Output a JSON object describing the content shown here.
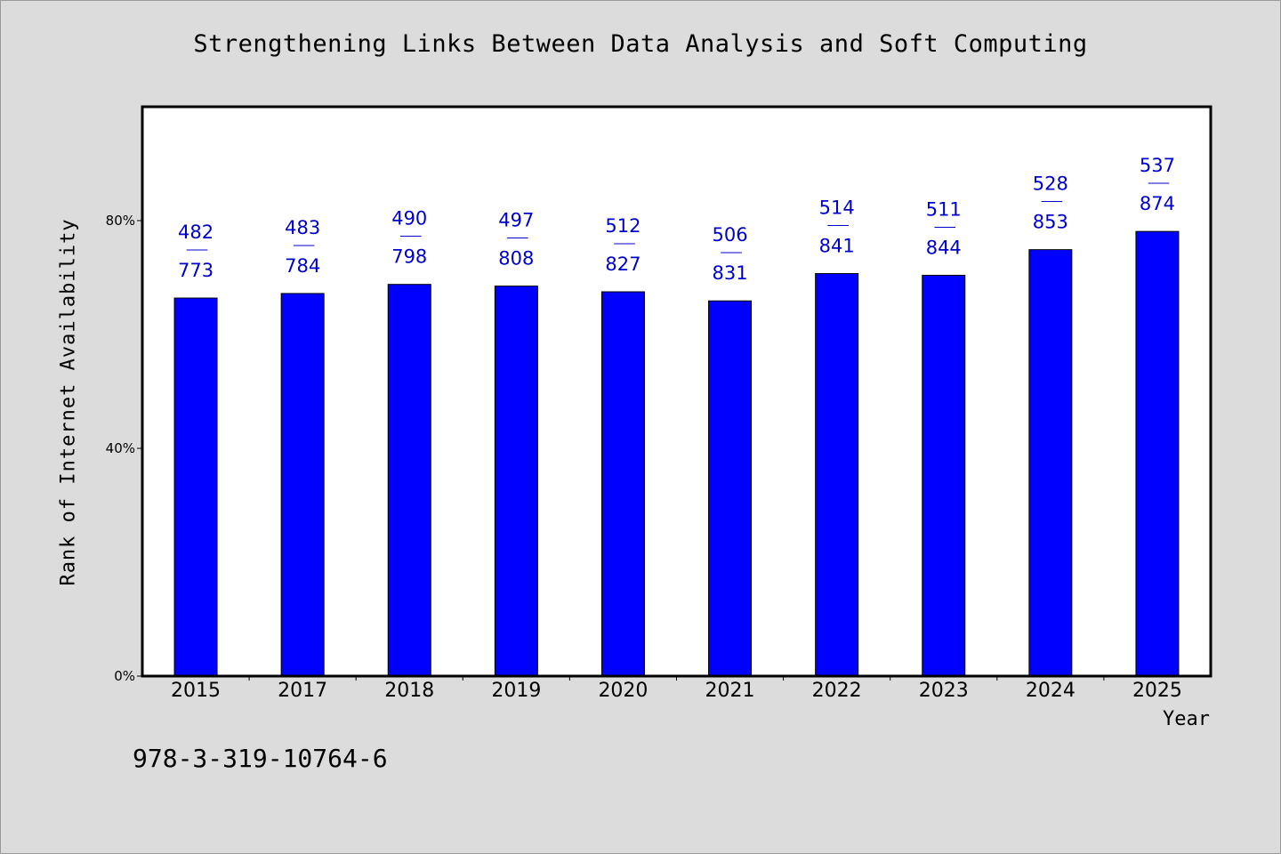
{
  "chart_data": {
    "type": "bar",
    "title": "Strengthening Links Between Data Analysis and Soft Computing",
    "xlabel": "Year",
    "ylabel": "Rank of Internet Availability",
    "categories": [
      "2015",
      "2017",
      "2018",
      "2019",
      "2020",
      "2021",
      "2022",
      "2023",
      "2024",
      "2025"
    ],
    "values": [
      66.4,
      67.2,
      68.8,
      68.5,
      67.5,
      65.9,
      70.7,
      70.4,
      74.9,
      78.1
    ],
    "labels_top": [
      "482",
      "483",
      "490",
      "497",
      "512",
      "506",
      "514",
      "511",
      "528",
      "537"
    ],
    "labels_bottom": [
      "773",
      "784",
      "798",
      "808",
      "827",
      "831",
      "841",
      "844",
      "853",
      "874"
    ],
    "label_separator": "——",
    "yticks": [
      0,
      40,
      80
    ],
    "ytick_labels": [
      "0%",
      "40%",
      "80%"
    ],
    "ylim": [
      0,
      100
    ],
    "grid": false,
    "legend": "none",
    "colors": {
      "bar": "#0000ff",
      "label": "#0000cc",
      "background": "#dcdcdc",
      "plot_background": "#ffffff"
    }
  },
  "footer": {
    "isbn": "978-3-319-10764-6"
  }
}
